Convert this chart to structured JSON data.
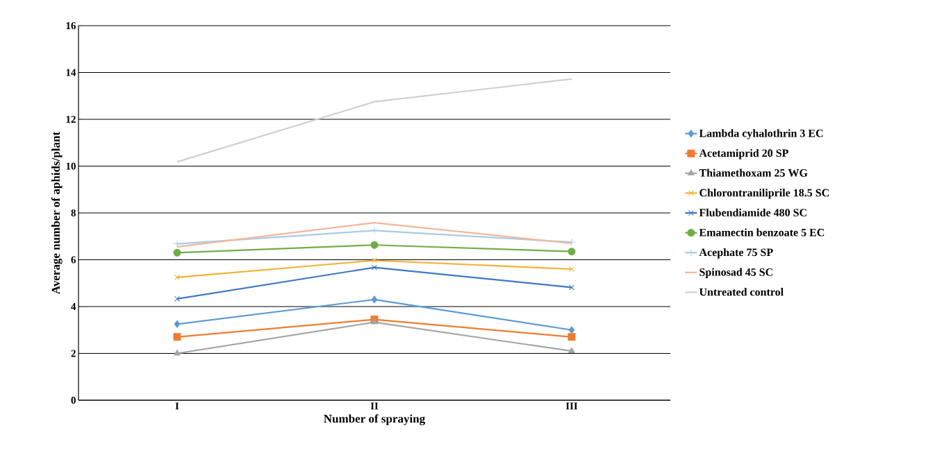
{
  "chart_data": {
    "type": "line",
    "xlabel": "Number of spraying",
    "ylabel": "Average number of aphids/plant",
    "categories": [
      "I",
      "II",
      "III"
    ],
    "ylim": [
      0,
      16
    ],
    "yticks": [
      0,
      2,
      4,
      6,
      8,
      10,
      12,
      14,
      16
    ],
    "grid": "y",
    "legend": "right",
    "line_style": "solid",
    "series": [
      {
        "name": "Lambda cyhalothrin 3 EC",
        "color": "#5b9bd5",
        "marker": "diamond",
        "values": [
          3.25,
          4.3,
          3.0
        ]
      },
      {
        "name": "Acetamiprid 20 SP",
        "color": "#ed7d31",
        "marker": "square",
        "values": [
          2.7,
          3.45,
          2.7
        ]
      },
      {
        "name": "Thiamethoxam 25 WG",
        "color": "#a5a5a5",
        "marker": "triangle",
        "values": [
          2.0,
          3.33,
          2.1
        ]
      },
      {
        "name": "Chlorontraniliprile 18.5 SC",
        "color": "#f2b233",
        "marker": "cross",
        "values": [
          5.25,
          5.97,
          5.6
        ]
      },
      {
        "name": "Flubendiamide 480 SC",
        "color": "#3d78c2",
        "marker": "cross",
        "values": [
          4.33,
          5.67,
          4.82
        ]
      },
      {
        "name": "Emamectin benzoate 5 EC",
        "color": "#70ad47",
        "marker": "circle",
        "values": [
          6.3,
          6.63,
          6.35
        ]
      },
      {
        "name": "Acephate 75 SP",
        "color": "#a8cbe8",
        "marker": "plus",
        "values": [
          6.68,
          7.25,
          6.75
        ]
      },
      {
        "name": "Spinosad 45 SC",
        "color": "#f4b69a",
        "marker": "none",
        "values": [
          6.55,
          7.58,
          6.7
        ]
      },
      {
        "name": "Untreated control",
        "color": "#d0d0d0",
        "marker": "none",
        "values": [
          10.18,
          12.75,
          13.72
        ]
      }
    ]
  }
}
